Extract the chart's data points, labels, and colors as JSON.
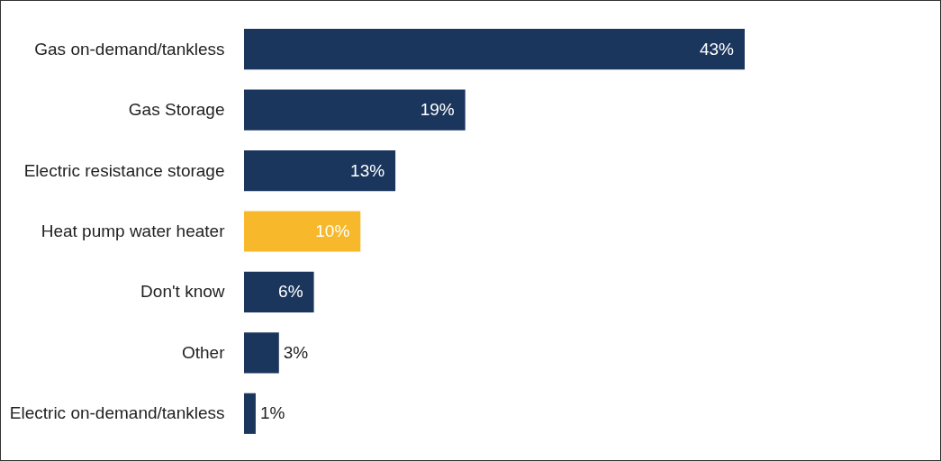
{
  "chart_data": {
    "type": "bar",
    "orientation": "horizontal",
    "data_labels": true,
    "categories": [
      "Gas on-demand/tankless",
      "Gas Storage",
      "Electric resistance storage",
      "Heat pump water heater",
      "Don't know",
      "Other",
      "Electric on-demand/tankless"
    ],
    "values": [
      43,
      19,
      13,
      10,
      6,
      3,
      1
    ],
    "value_labels": [
      "43%",
      "19%",
      "13%",
      "10%",
      "6%",
      "3%",
      "1%"
    ],
    "colors": [
      "#1b365d",
      "#1b365d",
      "#1b365d",
      "#f7b92b",
      "#1b365d",
      "#1b365d",
      "#1b365d"
    ]
  }
}
